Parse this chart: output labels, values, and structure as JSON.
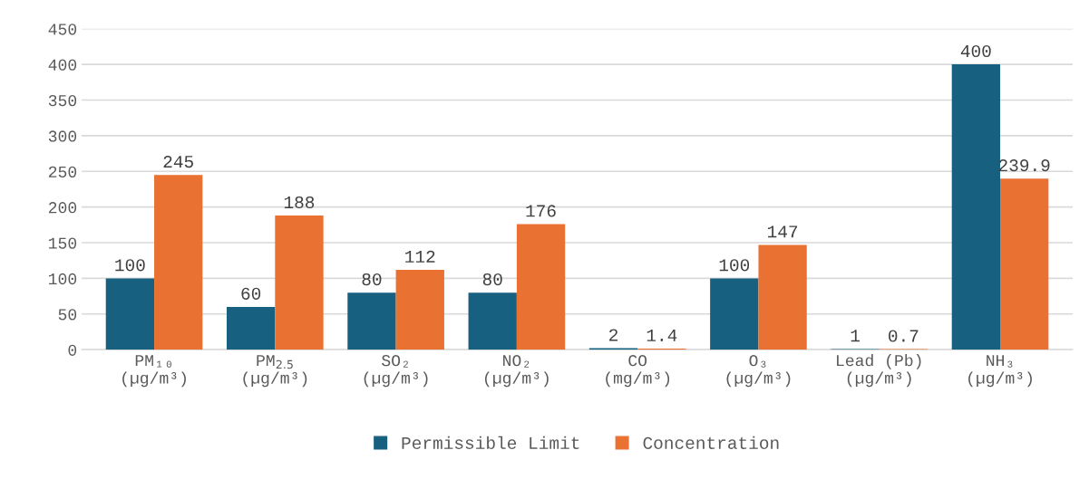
{
  "chart_data": {
    "type": "bar",
    "categories": [
      "PM₁₀\n(µg/m³)",
      "PM$_{2.5}$\n(µg/m³)",
      "SO₂\n(µg/m³)",
      "NO₂\n(µg/m³)",
      "CO\n(mg/m³)",
      "O₃\n(µg/m³)",
      "Lead (Pb)\n(µg/m³)",
      "NH₃\n(µg/m³)"
    ],
    "series": [
      {
        "name": "Permissible Limit",
        "color": "#17607f",
        "values": [
          100,
          60,
          80,
          80,
          2,
          100,
          1,
          400
        ]
      },
      {
        "name": "Concentration",
        "color": "#e97132",
        "values": [
          245,
          188,
          112,
          176,
          1.4,
          147,
          0.7,
          239.9
        ]
      }
    ],
    "ylim": [
      0,
      450
    ],
    "yticks": [
      0,
      50,
      100,
      150,
      200,
      250,
      300,
      350,
      400,
      450
    ],
    "grid": "y",
    "legend": "bottom",
    "data_labels": true
  }
}
